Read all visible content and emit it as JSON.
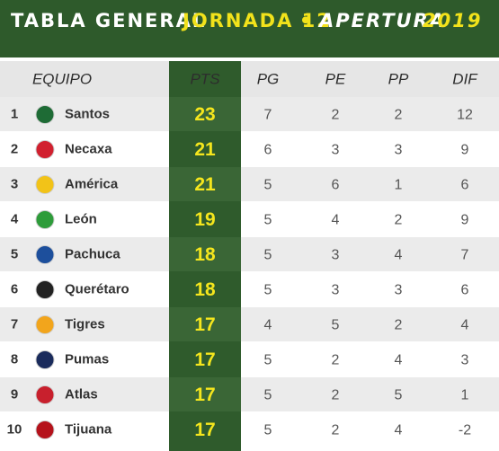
{
  "header": {
    "title_parts": [
      "TABLA GENERAL",
      "JORNADA 12",
      "•",
      "APERTURA",
      "2019"
    ]
  },
  "table": {
    "columns": [
      "EQUIPO",
      "PTS",
      "PG",
      "PE",
      "PP",
      "DIF"
    ],
    "rows": [
      [
        1,
        "Santos",
        23,
        7,
        2,
        2,
        12
      ],
      [
        2,
        "Necaxa",
        21,
        6,
        3,
        3,
        9
      ],
      [
        3,
        "América",
        21,
        5,
        6,
        1,
        6
      ],
      [
        4,
        "León",
        19,
        5,
        4,
        2,
        9
      ],
      [
        5,
        "Pachuca",
        18,
        5,
        3,
        4,
        7
      ],
      [
        6,
        "Querétaro",
        18,
        5,
        3,
        3,
        6
      ],
      [
        7,
        "Tigres",
        17,
        4,
        5,
        2,
        4
      ],
      [
        8,
        "Pumas",
        17,
        5,
        2,
        4,
        3
      ],
      [
        9,
        "Atlas",
        17,
        5,
        2,
        5,
        1
      ],
      [
        10,
        "Tijuana",
        17,
        5,
        2,
        4,
        -2
      ]
    ]
  }
}
